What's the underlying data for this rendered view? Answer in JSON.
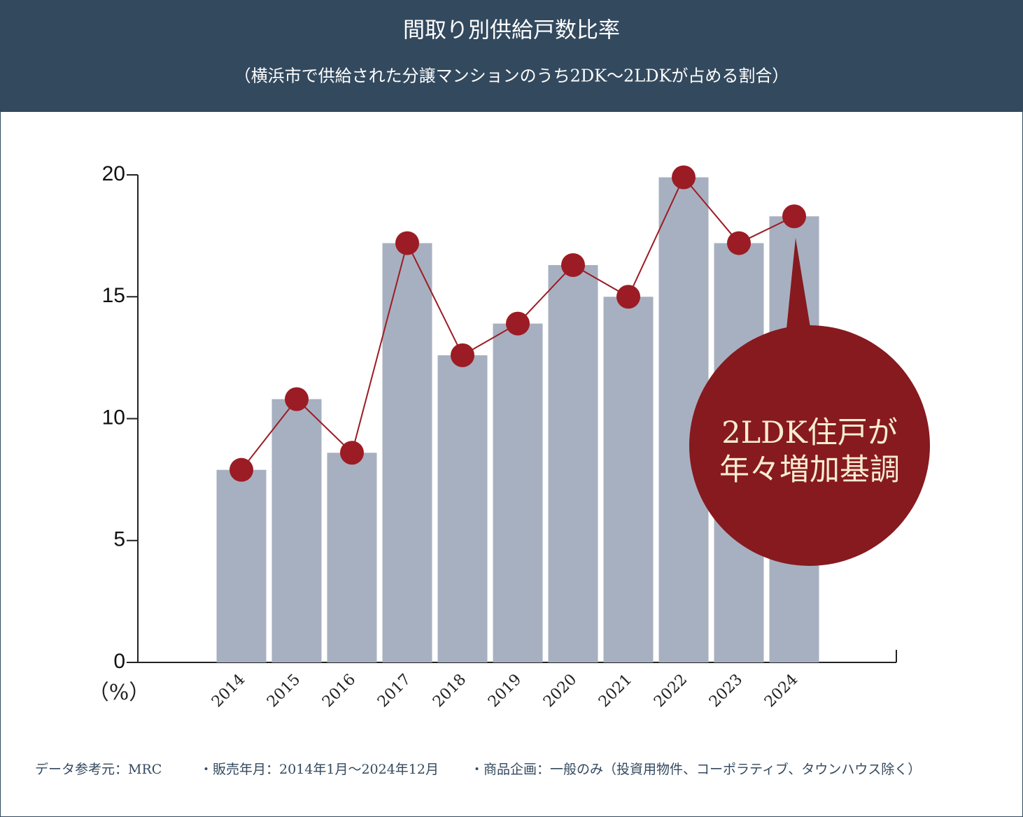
{
  "chart_data": {
    "type": "bar",
    "title": "間取り別供給戸数比率",
    "subtitle": "（横浜市で供給された分譲マンションのうち2DK〜2LDKが占める割合）",
    "y_label": "（%）",
    "categories": [
      "2014",
      "2015",
      "2016",
      "2017",
      "2018",
      "2019",
      "2020",
      "2021",
      "2022",
      "2023",
      "2024"
    ],
    "values": [
      7.9,
      10.8,
      8.6,
      17.2,
      12.6,
      13.9,
      16.3,
      15.0,
      19.9,
      17.2,
      18.3
    ],
    "color": "#a7b0c0",
    "line_overlay": true,
    "line_color": "#9b1c24",
    "ylim": [
      0,
      20
    ],
    "yticks": [
      0,
      5,
      10,
      15,
      20
    ],
    "grid": false,
    "annotation": [
      "2LDK住戸が",
      "年々増加基調"
    ],
    "annotation_color": "#861a1f",
    "notes": [
      "データ参考元：MRC",
      "・販売年月：2014年1月〜2024年12月",
      "・商品企画：一般のみ（投資用物件、コーポラティブ、タウンハウス除く）"
    ]
  }
}
